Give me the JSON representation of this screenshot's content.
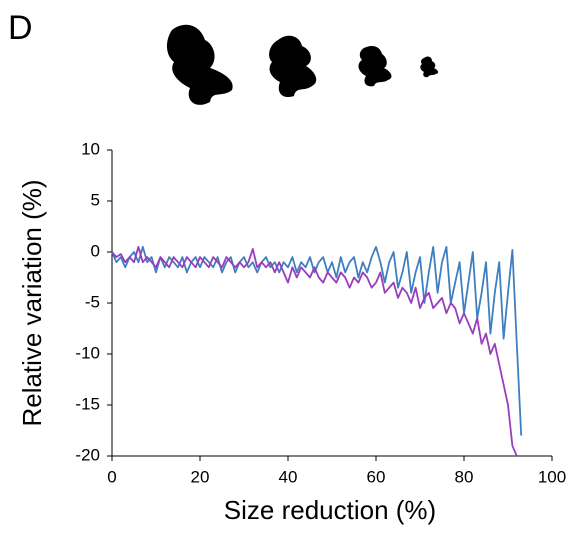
{
  "chart_data": {
    "type": "line",
    "panel_label": "D",
    "x_label": "Size reduction (%)",
    "y_label": "Relative variation (%)",
    "xlim": [
      0,
      100
    ],
    "xticks": [
      0,
      20,
      40,
      60,
      80,
      100
    ],
    "ylim": [
      -20,
      10
    ],
    "yticks": [
      -20,
      -15,
      -10,
      -5,
      0,
      5,
      10
    ],
    "x": [
      0,
      1,
      2,
      3,
      4,
      5,
      6,
      7,
      8,
      9,
      10,
      11,
      12,
      13,
      14,
      15,
      16,
      17,
      18,
      19,
      20,
      21,
      22,
      23,
      24,
      25,
      26,
      27,
      28,
      29,
      30,
      31,
      32,
      33,
      34,
      35,
      36,
      37,
      38,
      39,
      40,
      41,
      42,
      43,
      44,
      45,
      46,
      47,
      48,
      49,
      50,
      51,
      52,
      53,
      54,
      55,
      56,
      57,
      58,
      59,
      60,
      61,
      62,
      63,
      64,
      65,
      66,
      67,
      68,
      69,
      70,
      71,
      72,
      73,
      74,
      75,
      76,
      77,
      78,
      79,
      80,
      81,
      82,
      83,
      84,
      85,
      86,
      87,
      88,
      89,
      90,
      91,
      92,
      93
    ],
    "series": [
      {
        "color": "#3d7fc1",
        "values": [
          0,
          -1,
          -0.5,
          -1.5,
          -0.5,
          0,
          -1,
          0.5,
          -1,
          -0.5,
          -2,
          -0.5,
          -1.5,
          -0.5,
          -1,
          -1.5,
          -0.5,
          -2,
          -1,
          -0.5,
          -1.5,
          -0.5,
          -1,
          -1.5,
          -0.5,
          -2,
          -1,
          -0.5,
          -2,
          -1,
          -0.5,
          -1.5,
          -1,
          -2,
          -1,
          -0.5,
          -1.5,
          -1,
          -2,
          -1,
          -1.5,
          -0.5,
          -2,
          -1,
          -1.5,
          -0.5,
          -2,
          -1,
          -0.5,
          -2,
          -1,
          -2.5,
          -0.5,
          -2,
          -1,
          -0.5,
          -2.5,
          -1,
          -2,
          -0.5,
          0.5,
          -1,
          -3,
          -1,
          0,
          -3.5,
          -2,
          0,
          -4,
          -2,
          -0.5,
          -5,
          -2,
          0.5,
          -4,
          -1,
          0.5,
          -5,
          -3,
          -1,
          -6,
          -3,
          0,
          -6.5,
          -4,
          -1,
          -8,
          -4,
          -1,
          -8.5,
          -4,
          0.2,
          -9,
          -18
        ]
      },
      {
        "color": "#9a3dbd",
        "values": [
          0,
          -0.5,
          -0.2,
          -1,
          -0.5,
          -1,
          0.5,
          -1,
          -0.5,
          -1,
          -1.5,
          -0.5,
          -1,
          -1.5,
          -0.5,
          -1,
          -1.5,
          -0.5,
          -1,
          -1.5,
          -0.5,
          -1,
          -1.5,
          -0.5,
          -1,
          -1.5,
          -0.5,
          -1,
          -1.5,
          -1,
          -1.5,
          -1,
          0.3,
          -1.5,
          -1,
          -1.5,
          -1,
          -2,
          -1,
          -2,
          -3,
          -1.5,
          -2.5,
          -1.5,
          -2,
          -2.5,
          -1.5,
          -2.5,
          -3,
          -2,
          -2.5,
          -3,
          -2,
          -2.5,
          -3.5,
          -2.5,
          -3,
          -2,
          -2.5,
          -3.5,
          -3,
          -2,
          -4,
          -3.5,
          -3,
          -4.5,
          -3.5,
          -4,
          -5,
          -3.5,
          -5.5,
          -4.5,
          -4,
          -5.5,
          -5,
          -4.5,
          -6,
          -5,
          -5.5,
          -7,
          -6,
          -7,
          -8,
          -6.5,
          -9,
          -8,
          -10,
          -9,
          -11,
          -13,
          -15,
          -19,
          -20,
          null
        ]
      }
    ]
  }
}
